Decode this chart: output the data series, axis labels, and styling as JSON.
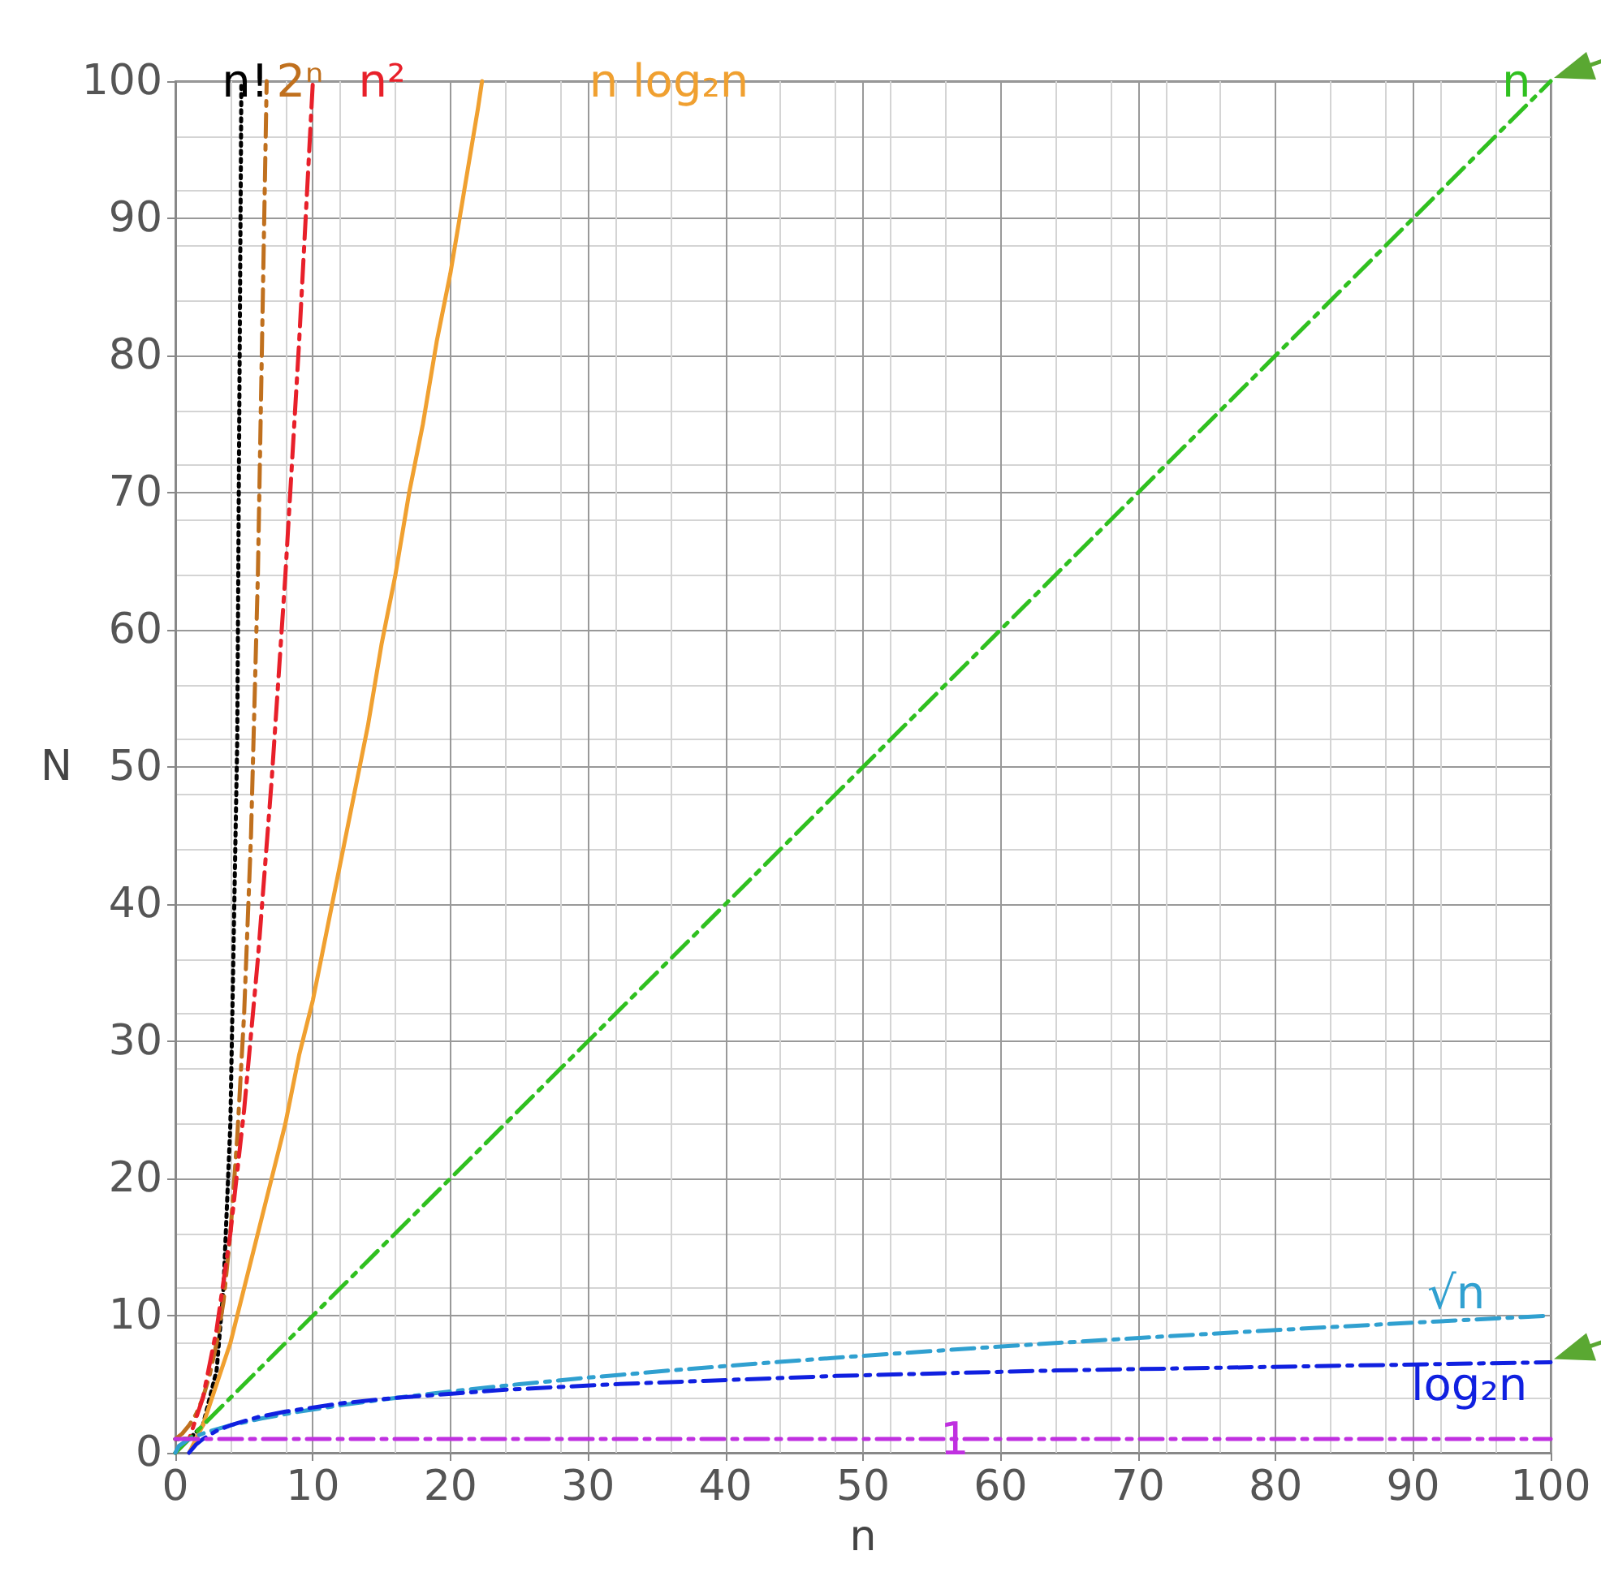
{
  "chart_data": {
    "type": "line",
    "xlabel": "n",
    "ylabel": "N",
    "xlim": [
      0,
      100
    ],
    "ylim": [
      0,
      100
    ],
    "xticks": [
      0,
      10,
      20,
      30,
      40,
      50,
      60,
      70,
      80,
      90,
      100
    ],
    "yticks": [
      0,
      10,
      20,
      30,
      40,
      50,
      60,
      70,
      80,
      90,
      100
    ],
    "grid": true,
    "legend": false,
    "marker": "none",
    "series": [
      {
        "name": "n!",
        "color": "#000000",
        "line_style": "dotted",
        "x": [
          0,
          1,
          2,
          3,
          3.5,
          4,
          4.5,
          4.8
        ],
        "values": [
          1,
          1,
          2,
          6,
          12,
          24,
          52,
          100
        ]
      },
      {
        "name": "2ⁿ",
        "color": "#c0701e",
        "line_style": "dashed",
        "x": [
          0,
          0.5,
          1,
          1.5,
          2,
          2.5,
          3,
          3.5,
          4,
          4.5,
          5,
          5.5,
          6,
          6.64
        ],
        "values": [
          1,
          1.4,
          2,
          2.8,
          4,
          5.7,
          8,
          11,
          16,
          23,
          32,
          45,
          64,
          100
        ]
      },
      {
        "name": "n²",
        "color": "#e8202a",
        "line_style": "dashed",
        "x": [
          0,
          1,
          2,
          3,
          4,
          5,
          6,
          7,
          8,
          9,
          10
        ],
        "values": [
          0,
          1,
          4,
          9,
          16,
          25,
          36,
          49,
          64,
          81,
          100
        ]
      },
      {
        "name": "n log₂n",
        "color": "#f0a030",
        "line_style": "solid",
        "x": [
          1,
          2,
          3,
          4,
          5,
          6,
          7,
          8,
          9,
          10,
          11,
          12,
          13,
          14,
          15,
          16,
          17,
          18,
          19,
          20,
          21,
          22,
          22.3
        ],
        "values": [
          0,
          2,
          5,
          8,
          12,
          16,
          20,
          24,
          29,
          33,
          38,
          43,
          48,
          53,
          59,
          64,
          70,
          75,
          81,
          86,
          92,
          98,
          100
        ]
      },
      {
        "name": "n",
        "color": "#30c020",
        "line_style": "dashed",
        "x": [
          0,
          100
        ],
        "values": [
          0,
          100
        ]
      },
      {
        "name": "√n",
        "color": "#30a0d0",
        "line_style": "dashed",
        "x": [
          0,
          0.25,
          1,
          2.25,
          4,
          6.25,
          9,
          12.25,
          16,
          20.25,
          25,
          30.25,
          36,
          42.25,
          49,
          56.25,
          64,
          72.25,
          81,
          90.25,
          100
        ],
        "values": [
          0,
          0.5,
          1,
          1.5,
          2,
          2.5,
          3,
          3.5,
          4,
          4.5,
          5,
          5.5,
          6,
          6.5,
          7,
          7.5,
          8,
          8.5,
          9,
          9.5,
          10
        ]
      },
      {
        "name": "log₂n",
        "color": "#1020e0",
        "line_style": "dashed",
        "x": [
          1,
          1.5,
          2,
          3,
          4,
          6,
          8,
          12,
          16,
          24,
          32,
          48,
          64,
          100
        ],
        "values": [
          0,
          0.6,
          1,
          1.6,
          2,
          2.6,
          3,
          3.6,
          4,
          4.6,
          5,
          5.6,
          6,
          6.6
        ]
      },
      {
        "name": "1",
        "color": "#c030e0",
        "line_style": "dashed",
        "x": [
          0,
          100
        ],
        "values": [
          1,
          1
        ]
      }
    ]
  }
}
